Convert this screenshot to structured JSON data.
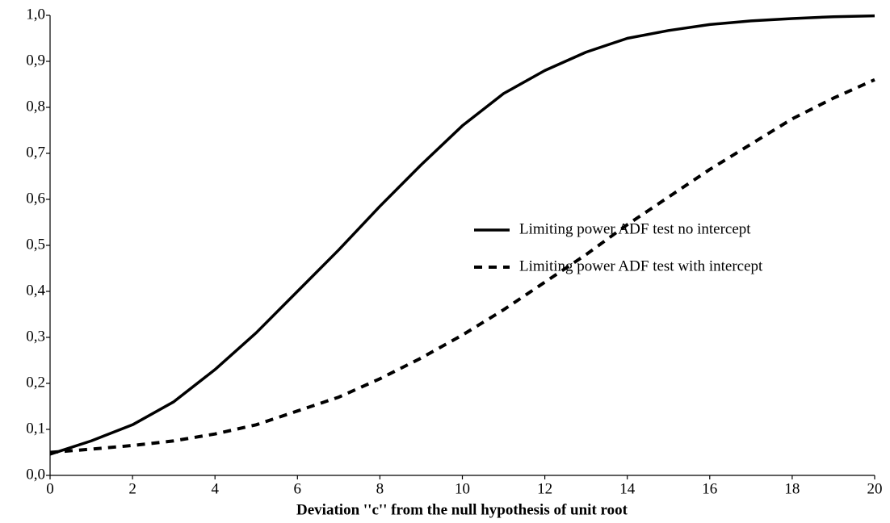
{
  "chart_data": {
    "type": "line",
    "x_label": "Deviation ''c'' from the null hypothesis of unit root",
    "x": [
      0,
      1,
      2,
      3,
      4,
      5,
      6,
      7,
      8,
      9,
      10,
      11,
      12,
      13,
      14,
      15,
      16,
      17,
      18,
      19,
      20
    ],
    "series": [
      {
        "name": "Limiting power ADF test no intercept",
        "color": "#000000",
        "dash": false,
        "values": [
          0.046,
          0.075,
          0.11,
          0.16,
          0.23,
          0.31,
          0.4,
          0.49,
          0.585,
          0.675,
          0.76,
          0.83,
          0.88,
          0.92,
          0.95,
          0.967,
          0.98,
          0.988,
          0.993,
          0.997,
          0.999
        ]
      },
      {
        "name": "Limiting power ADF test with intercept",
        "color": "#000000",
        "dash": true,
        "values": [
          0.05,
          0.057,
          0.065,
          0.075,
          0.09,
          0.11,
          0.14,
          0.17,
          0.21,
          0.255,
          0.305,
          0.36,
          0.42,
          0.48,
          0.545,
          0.605,
          0.665,
          0.72,
          0.775,
          0.82,
          0.86
        ]
      }
    ],
    "xlim": [
      0,
      20
    ],
    "xticks": [
      0,
      2,
      4,
      6,
      8,
      10,
      12,
      14,
      16,
      18,
      20
    ],
    "ylim": [
      0,
      1
    ],
    "yticks": [
      {
        "value": 0,
        "label": "0,0"
      },
      {
        "value": 0.1,
        "label": "0,1"
      },
      {
        "value": 0.2,
        "label": "0,2"
      },
      {
        "value": 0.3,
        "label": "0,3"
      },
      {
        "value": 0.4,
        "label": "0,4"
      },
      {
        "value": 0.5,
        "label": "0,5"
      },
      {
        "value": 0.6,
        "label": "0,6"
      },
      {
        "value": 0.7,
        "label": "0,7"
      },
      {
        "value": 0.8,
        "label": "0,8"
      },
      {
        "value": 0.9,
        "label": "0,9"
      },
      {
        "value": 1,
        "label": "1,0"
      }
    ],
    "grid": false,
    "legend": "lower-right"
  }
}
